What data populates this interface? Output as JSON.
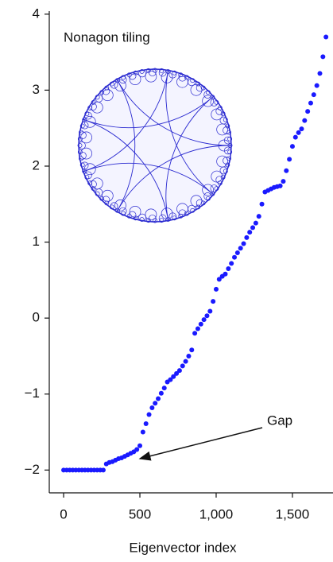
{
  "chart_data": {
    "type": "scatter",
    "inset_label": "Nonagon tiling",
    "x_label": "Eigenvector index",
    "annotation": "Gap",
    "x": [
      0,
      20,
      40,
      60,
      80,
      100,
      120,
      140,
      160,
      180,
      200,
      220,
      240,
      260,
      280,
      300,
      320,
      340,
      360,
      380,
      400,
      420,
      440,
      460,
      480,
      500,
      520,
      540,
      560,
      580,
      600,
      620,
      640,
      660,
      680,
      700,
      720,
      740,
      760,
      780,
      800,
      820,
      840,
      860,
      880,
      900,
      920,
      940,
      960,
      980,
      1000,
      1020,
      1040,
      1060,
      1080,
      1100,
      1120,
      1140,
      1160,
      1180,
      1200,
      1220,
      1240,
      1260,
      1280,
      1300,
      1320,
      1340,
      1360,
      1380,
      1400,
      1420,
      1440,
      1460,
      1480,
      1500,
      1520,
      1540,
      1560,
      1580,
      1600,
      1620,
      1640,
      1660,
      1680,
      1700,
      1720
    ],
    "values": [
      -2,
      -2,
      -2,
      -2,
      -2,
      -2,
      -2,
      -2,
      -2,
      -2,
      -2,
      -2,
      -2,
      -2,
      -1.92,
      -1.9,
      -1.89,
      -1.87,
      -1.85,
      -1.84,
      -1.82,
      -1.8,
      -1.78,
      -1.76,
      -1.73,
      -1.68,
      -1.5,
      -1.39,
      -1.27,
      -1.18,
      -1.12,
      -1.06,
      -0.99,
      -0.92,
      -0.84,
      -0.81,
      -0.77,
      -0.73,
      -0.69,
      -0.63,
      -0.57,
      -0.5,
      -0.42,
      -0.2,
      -0.14,
      -0.08,
      -0.02,
      0.03,
      0.09,
      0.22,
      0.38,
      0.51,
      0.55,
      0.58,
      0.65,
      0.72,
      0.8,
      0.86,
      0.92,
      0.98,
      1.06,
      1.13,
      1.19,
      1.25,
      1.34,
      1.5,
      1.66,
      1.68,
      1.7,
      1.72,
      1.73,
      1.74,
      1.8,
      1.94,
      2.09,
      2.26,
      2.38,
      2.44,
      2.49,
      2.6,
      2.72,
      2.83,
      2.94,
      3.06,
      3.22,
      3.44,
      3.7
    ],
    "color": "#1a1aff",
    "xlim": [
      -94,
      1766
    ],
    "ylim": [
      -2.3,
      4.04
    ],
    "xticks": [
      0,
      500,
      {
        "value": 1000,
        "label": "1,000"
      },
      {
        "value": 1500,
        "label": "1,500"
      }
    ],
    "yticks": [
      {
        "value": -2,
        "label": "−2"
      },
      {
        "value": -1,
        "label": "−1"
      },
      0,
      1,
      2,
      3,
      4
    ]
  }
}
